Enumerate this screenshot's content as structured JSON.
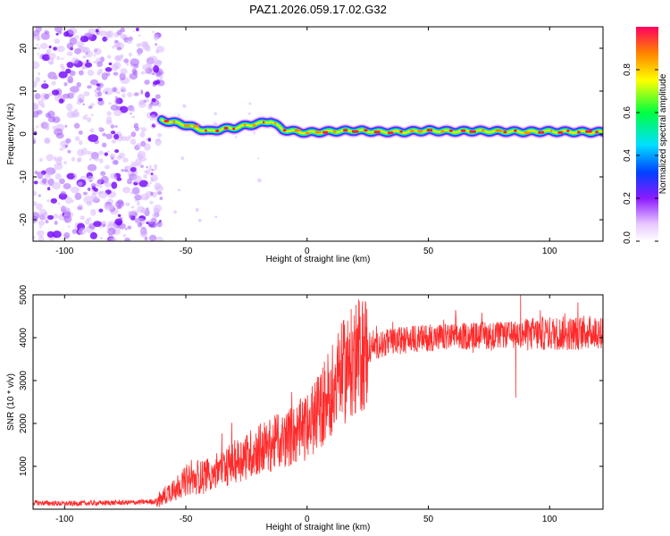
{
  "figure_title": "PAZ1.2026.059.17.02.G32",
  "chart_data": [
    {
      "type": "heatmap",
      "title": "PAZ1.2026.059.17.02.G32",
      "xlabel": "Height of straight line (km)",
      "ylabel": "Frequency (Hz)",
      "xlim": [
        -113,
        122
      ],
      "ylim": [
        -25,
        25
      ],
      "x_ticks": [
        "-100",
        "-50",
        "0",
        "50",
        "100"
      ],
      "y_ticks": [
        "-20",
        "-10",
        "0",
        "10",
        "20"
      ],
      "colorbar": {
        "label": "Normalized spectral amplitude",
        "range": [
          0,
          1
        ],
        "ticks": [
          "0.0",
          "0.2",
          "0.4",
          "0.6",
          "0.8"
        ]
      },
      "noise_region_x": [
        -113,
        -60
      ],
      "ridge": {
        "x": [
          -60,
          -55,
          -50,
          -45,
          -40,
          -35,
          -30,
          -25,
          -20,
          -15,
          -10,
          -5,
          0,
          10,
          20,
          30,
          40,
          50,
          60,
          70,
          80,
          90,
          100,
          110,
          122
        ],
        "frequency": [
          3.2,
          2.7,
          2.1,
          1.2,
          0.6,
          1.2,
          1.4,
          2.0,
          2.4,
          3.0,
          1.0,
          0.6,
          0.3,
          0.6,
          0.8,
          0.5,
          0.5,
          0.8,
          0.6,
          0.7,
          0.6,
          0.5,
          0.6,
          0.5,
          0.4
        ]
      }
    },
    {
      "type": "line",
      "xlabel": "Height of straight line (km)",
      "ylabel": "SNR (10 * v/v)",
      "xlim": [
        -113,
        122
      ],
      "ylim": [
        0,
        5000
      ],
      "x_ticks": [
        "-100",
        "-50",
        "0",
        "50",
        "100"
      ],
      "y_ticks": [
        "1000",
        "2000",
        "3000",
        "4000",
        "5000"
      ],
      "series": [
        {
          "name": "SNR",
          "color": "#ff2a2a",
          "x": [
            -113,
            -100,
            -90,
            -80,
            -70,
            -63,
            -60,
            -58,
            -55,
            -50,
            -45,
            -40,
            -35,
            -30,
            -25,
            -20,
            -15,
            -10,
            -5,
            0,
            5,
            10,
            15,
            20,
            25,
            30,
            40,
            50,
            60,
            70,
            80,
            90,
            100,
            110,
            122
          ],
          "y": [
            150,
            130,
            140,
            150,
            160,
            180,
            250,
            350,
            500,
            650,
            720,
            850,
            950,
            1100,
            1250,
            1400,
            1500,
            1600,
            1750,
            1900,
            2300,
            2800,
            3200,
            3500,
            3700,
            3850,
            3950,
            4000,
            4020,
            4050,
            4050,
            4080,
            4100,
            4100,
            4150
          ]
        }
      ],
      "annotations": [
        {
          "x": 86,
          "y": 2600,
          "note": "dip"
        },
        {
          "x": 88,
          "y": 5000,
          "note": "spike"
        }
      ]
    }
  ]
}
